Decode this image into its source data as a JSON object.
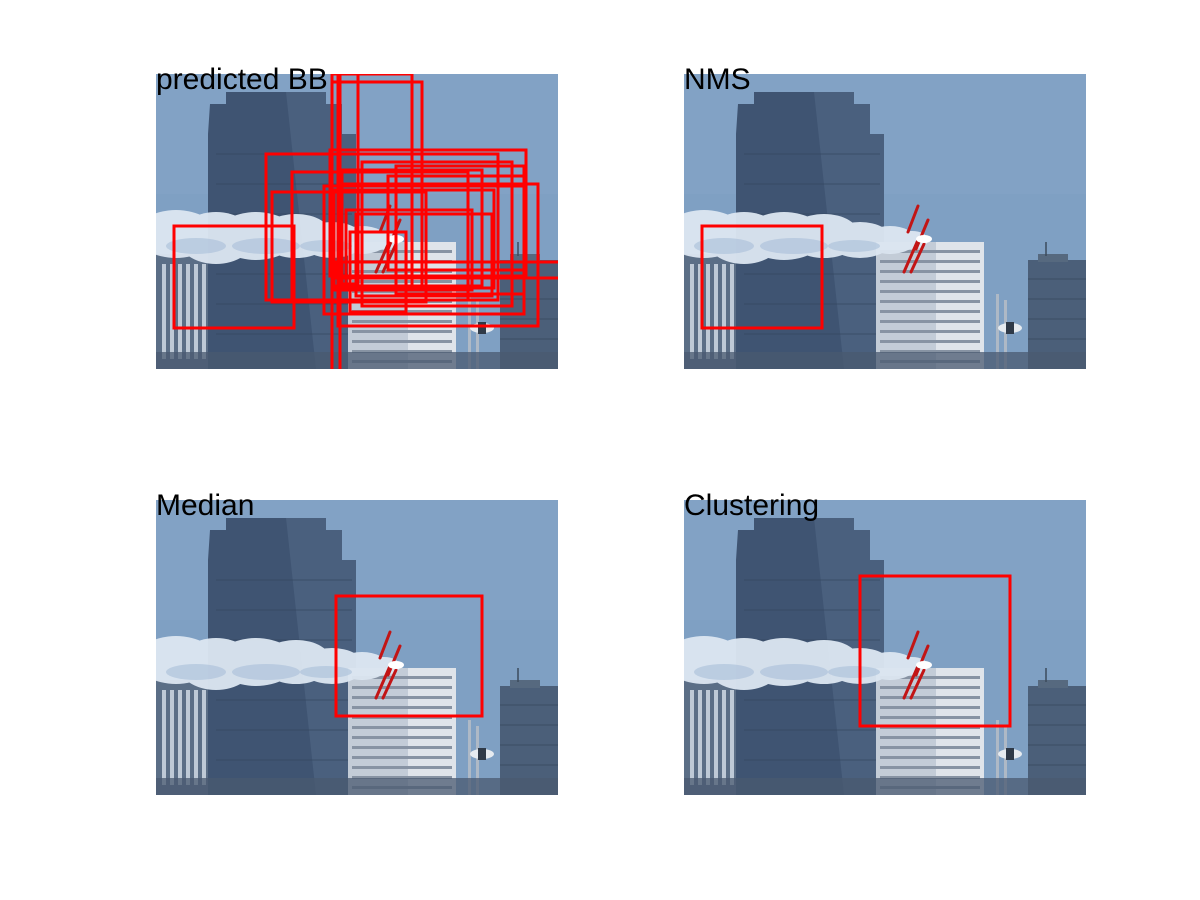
{
  "figure": {
    "panels": [
      {
        "title": "predicted BB"
      },
      {
        "title": "NMS"
      },
      {
        "title": "Median"
      },
      {
        "title": "Clustering"
      }
    ]
  },
  "colors": {
    "box": "#ff0000",
    "sky": "#7fa0c3",
    "smoke": "#dde7f2"
  }
}
